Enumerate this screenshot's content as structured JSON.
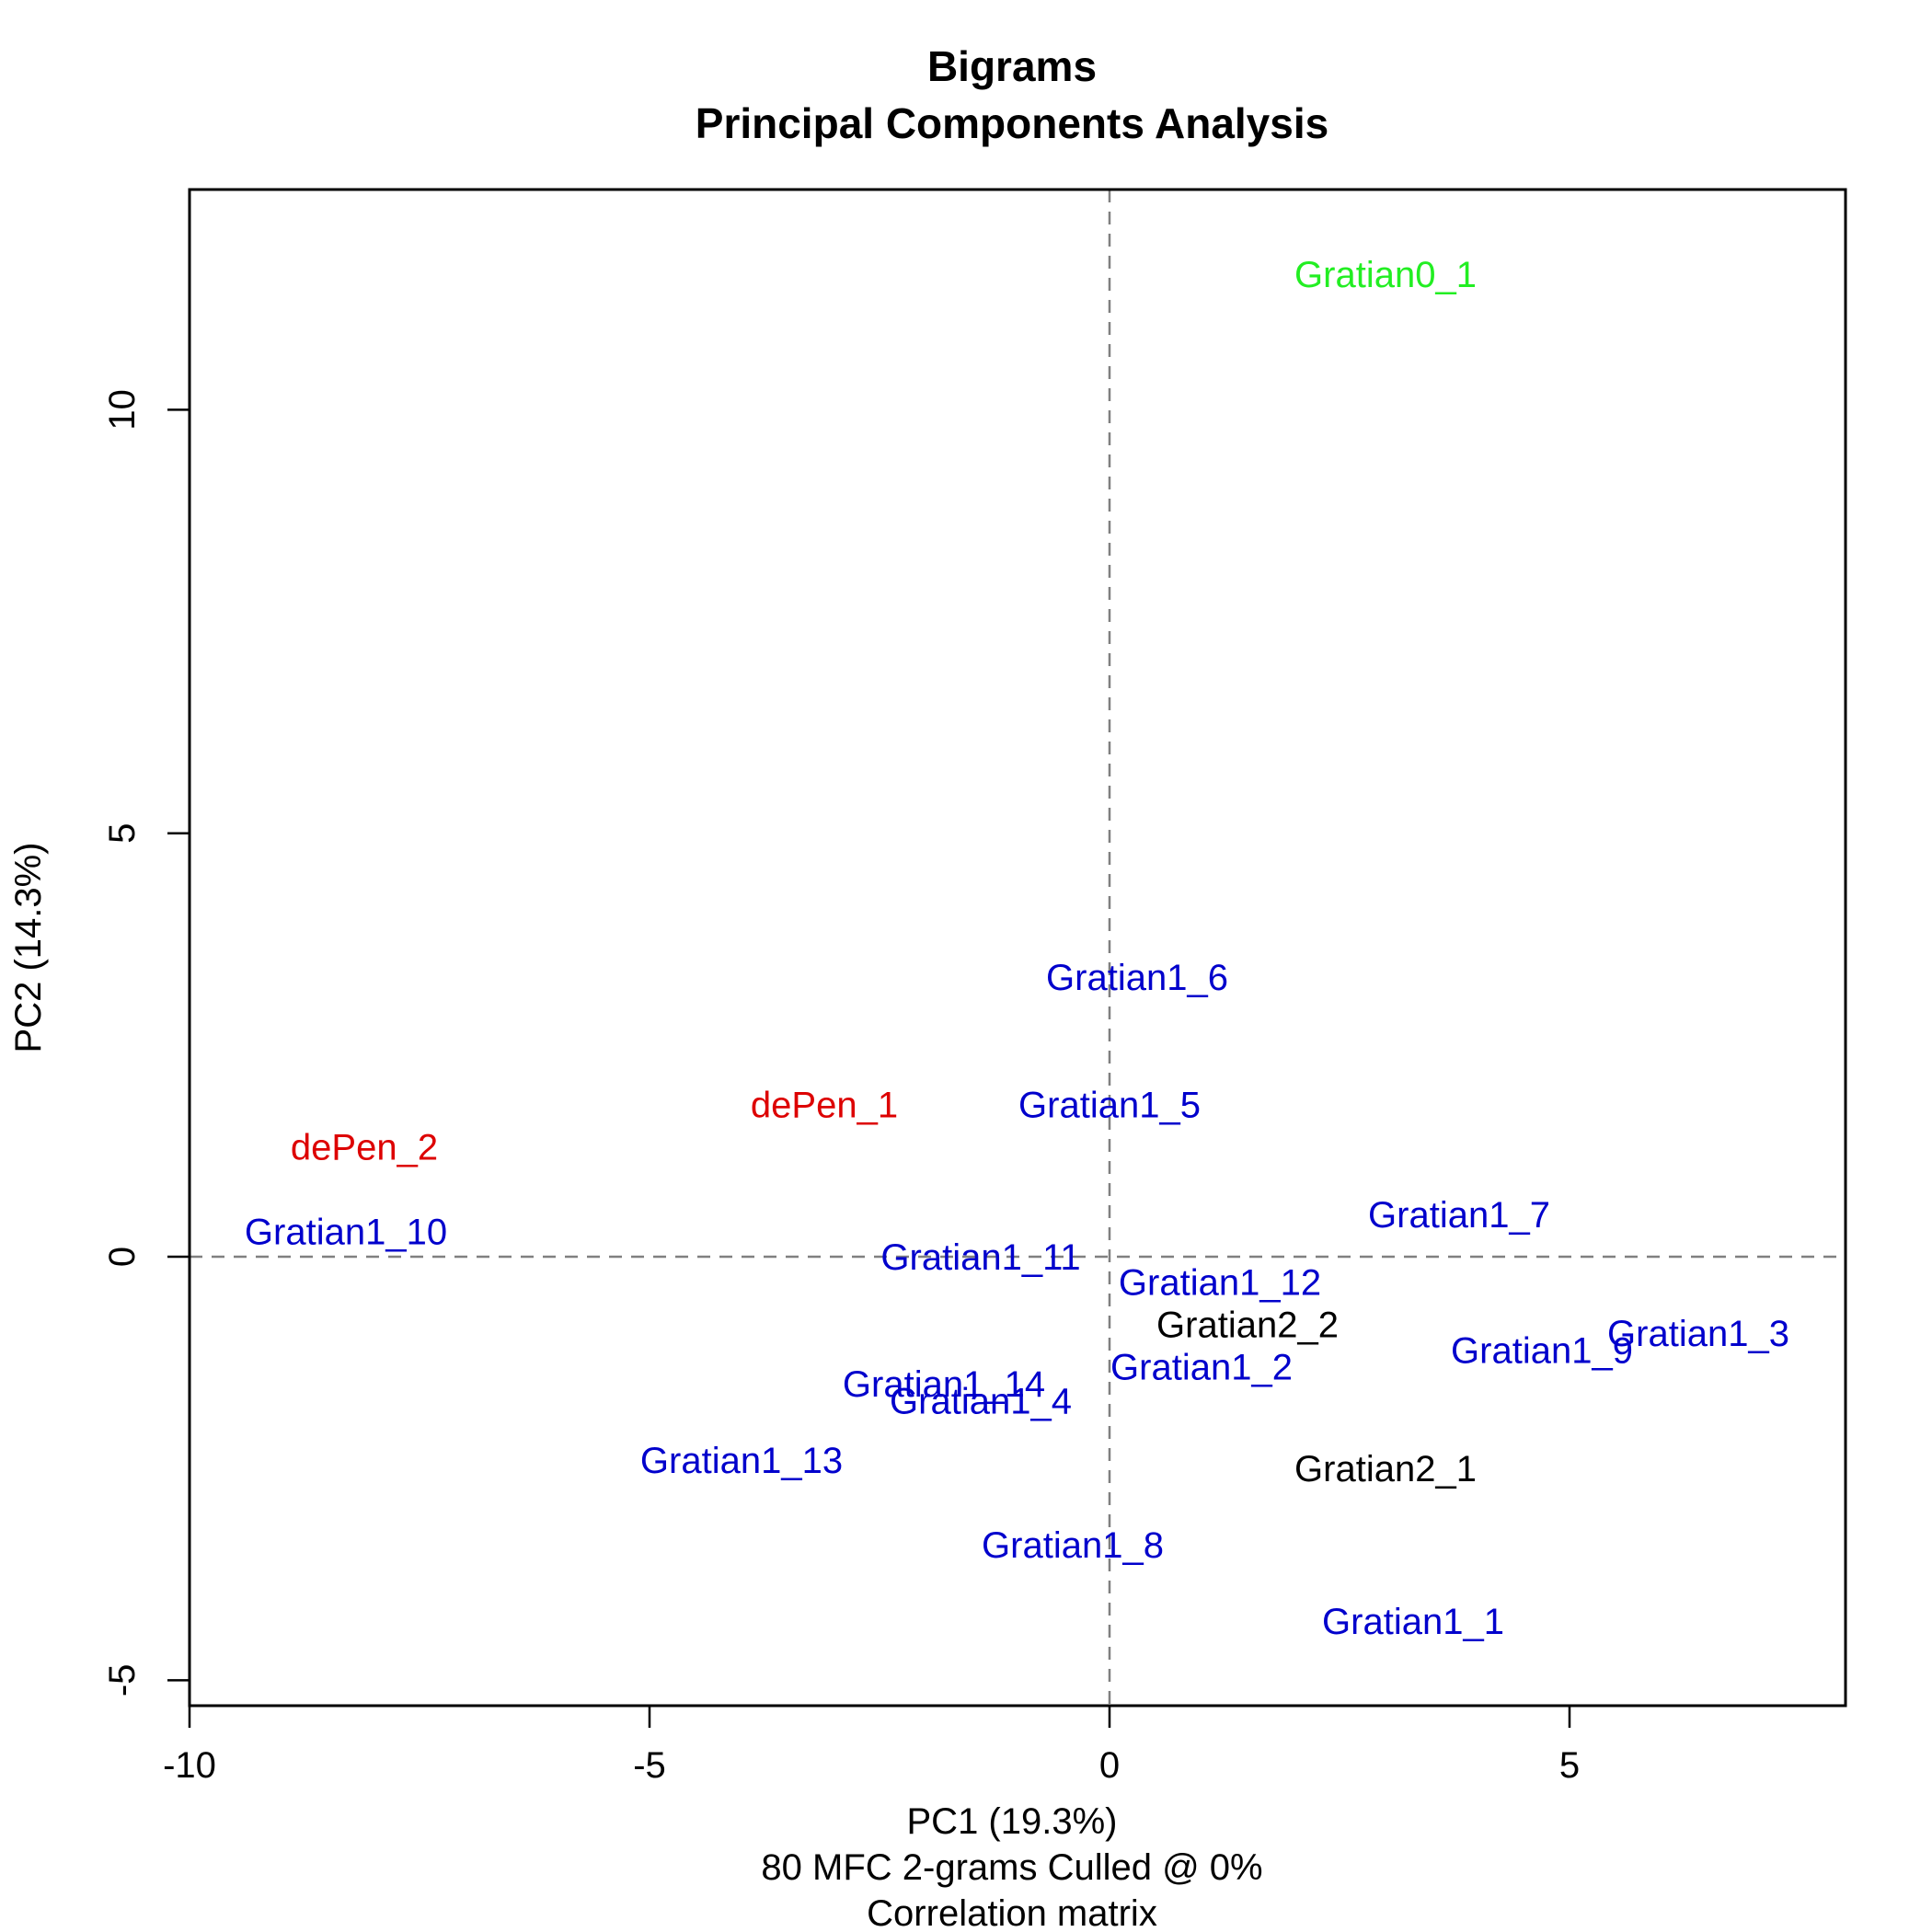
{
  "chart_data": {
    "type": "scatter",
    "title": [
      "Bigrams",
      "Principal Components Analysis"
    ],
    "xlabel": [
      "PC1 (19.3%)",
      "80 MFC 2-grams Culled @ 0%",
      "Correlation matrix"
    ],
    "ylabel": "PC2 (14.3%)",
    "xlim": [
      -10,
      8
    ],
    "ylim": [
      -5.3,
      12.6
    ],
    "xticks": [
      {
        "value": -10,
        "label": "-10"
      },
      {
        "value": -5,
        "label": "-5"
      },
      {
        "value": 0,
        "label": "0"
      },
      {
        "value": 5,
        "label": "5"
      }
    ],
    "yticks": [
      {
        "value": -5,
        "label": "-5"
      },
      {
        "value": 0,
        "label": "0"
      },
      {
        "value": 5,
        "label": "5"
      },
      {
        "value": 10,
        "label": "10"
      }
    ],
    "reference_lines": {
      "x": 0,
      "y": 0,
      "style": "dashed",
      "color": "#808080"
    },
    "grid": false,
    "points": [
      {
        "label": "Gratian0_1",
        "x": 3.0,
        "y": 11.6,
        "color": "#22ee22"
      },
      {
        "label": "Gratian1_6",
        "x": 0.3,
        "y": 3.3,
        "color": "#0000cc"
      },
      {
        "label": "dePen_1",
        "x": -3.1,
        "y": 1.8,
        "color": "#dd0000"
      },
      {
        "label": "Gratian1_5",
        "x": 0.0,
        "y": 1.8,
        "color": "#0000cc"
      },
      {
        "label": "dePen_2",
        "x": -8.1,
        "y": 1.3,
        "color": "#dd0000"
      },
      {
        "label": "Gratian1_7",
        "x": 3.8,
        "y": 0.5,
        "color": "#0000cc"
      },
      {
        "label": "Gratian1_10",
        "x": -8.3,
        "y": 0.3,
        "color": "#0000cc"
      },
      {
        "label": "Gratian1_11",
        "x": -1.4,
        "y": 0.0,
        "color": "#0000cc"
      },
      {
        "label": "Gratian1_12",
        "x": 1.2,
        "y": -0.3,
        "color": "#0000cc"
      },
      {
        "label": "Gratian2_2",
        "x": 1.5,
        "y": -0.8,
        "color": "#000000"
      },
      {
        "label": "Gratian1_3",
        "x": 6.4,
        "y": -0.9,
        "color": "#0000cc"
      },
      {
        "label": "Gratian1_9",
        "x": 4.7,
        "y": -1.1,
        "color": "#0000cc"
      },
      {
        "label": "Gratian1_2",
        "x": 1.0,
        "y": -1.3,
        "color": "#0000cc"
      },
      {
        "label": "Gratian1_14",
        "x": -1.8,
        "y": -1.5,
        "color": "#0000cc"
      },
      {
        "label": "Gratian1_4",
        "x": -1.4,
        "y": -1.7,
        "color": "#0000cc"
      },
      {
        "label": "Gratian1_13",
        "x": -4.0,
        "y": -2.4,
        "color": "#0000cc"
      },
      {
        "label": "Gratian2_1",
        "x": 3.0,
        "y": -2.5,
        "color": "#000000"
      },
      {
        "label": "Gratian1_8",
        "x": -0.4,
        "y": -3.4,
        "color": "#0000cc"
      },
      {
        "label": "Gratian1_1",
        "x": 3.3,
        "y": -4.3,
        "color": "#0000cc"
      }
    ]
  }
}
